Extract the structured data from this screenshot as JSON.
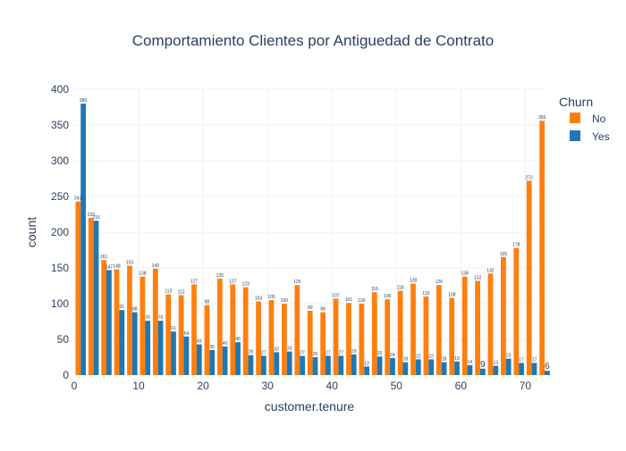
{
  "chart_data": {
    "type": "bar",
    "title": "Comportamiento Clientes por Antiguedad de Contrato",
    "xlabel": "customer.tenure",
    "ylabel": "count",
    "xlim": [
      0,
      73
    ],
    "ylim": [
      0,
      400
    ],
    "x_ticks": [
      0,
      10,
      20,
      30,
      40,
      50,
      60,
      70
    ],
    "y_ticks": [
      0,
      50,
      100,
      150,
      200,
      250,
      300,
      350,
      400
    ],
    "grid": true,
    "legend": {
      "title": "Churn",
      "placement": "top-right"
    },
    "bin_centers": [
      1,
      3,
      5,
      7,
      9,
      11,
      13,
      15,
      17,
      19,
      21,
      23,
      25,
      27,
      29,
      31,
      33,
      35,
      37,
      39,
      41,
      43,
      45,
      47,
      49,
      51,
      53,
      55,
      57,
      59,
      61,
      63,
      65,
      67,
      69,
      71,
      73
    ],
    "series": [
      {
        "name": "No",
        "color": "#ff7f0e",
        "values": [
          243,
          220,
          161,
          148,
          153,
          138,
          149,
          113,
          112,
          127,
          98,
          135,
          127,
          123,
          103,
          105,
          100,
          126,
          90,
          88,
          107,
          101,
          100,
          116,
          106,
          118,
          128,
          110,
          126,
          108,
          138,
          132,
          142,
          165,
          178,
          272,
          356
        ],
        "labels": [
          "243",
          "220",
          "161",
          "148",
          "153",
          "138",
          "149",
          "113",
          "112",
          "127",
          "98",
          "135",
          "127",
          "123",
          "103",
          "105",
          "100",
          "126",
          "90",
          "88",
          "107",
          "101",
          "100",
          "116",
          "106",
          "118",
          "128",
          "110",
          "126",
          "108",
          "138",
          "132",
          "142",
          "165",
          "178",
          "272",
          "356"
        ]
      },
      {
        "name": "Yes",
        "color": "#1f77b4",
        "values": [
          380,
          216,
          147,
          91,
          88,
          76,
          76,
          61,
          54,
          43,
          35,
          40,
          46,
          28,
          27,
          32,
          33,
          27,
          25,
          27,
          27,
          29,
          12,
          26,
          24,
          18,
          22,
          22,
          18,
          19,
          14,
          9,
          13,
          23,
          17,
          17,
          6
        ],
        "labels": [
          "380",
          "216",
          "147",
          "91",
          "88",
          "76",
          "76",
          "61",
          "54",
          "43",
          "35",
          "40",
          "46",
          "28",
          "27",
          "32",
          "33",
          "27",
          "25",
          "27",
          "27",
          "29",
          "12",
          "26",
          "24",
          "18",
          "22",
          "22",
          "18",
          "19",
          "14",
          "9",
          "13",
          "23",
          "17",
          "17",
          "6"
        ]
      }
    ]
  }
}
